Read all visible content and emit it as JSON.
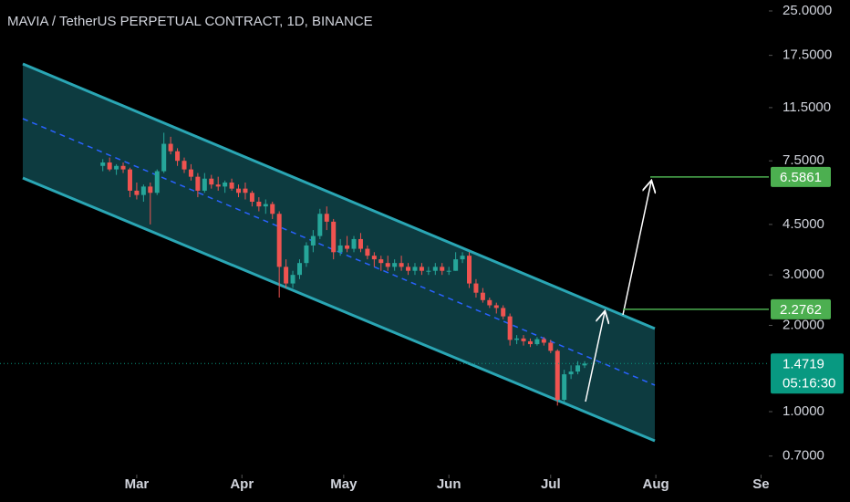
{
  "chart_data": {
    "type": "candlestick",
    "title": "MAVIA / TetherUS PERPETUAL CONTRACT, 1D, BINANCE",
    "log_scale": true,
    "xlim": [
      -11.3,
      215.3
    ],
    "xticks": [
      {
        "value": 29,
        "label": "Mar"
      },
      {
        "value": 60,
        "label": "Apr"
      },
      {
        "value": 90,
        "label": "May"
      },
      {
        "value": 121,
        "label": "Jun"
      },
      {
        "value": 151,
        "label": "Jul"
      },
      {
        "value": 182,
        "label": "Aug"
      },
      {
        "value": 213,
        "label": "Se"
      }
    ],
    "ylim": [
      0.603,
      27.3
    ],
    "yticks": [
      {
        "value": 25,
        "label": "25.0000"
      },
      {
        "value": 17.5,
        "label": "17.5000"
      },
      {
        "value": 11.5,
        "label": "11.5000"
      },
      {
        "value": 7.5,
        "label": "7.5000"
      },
      {
        "value": 4.5,
        "label": "4.5000"
      },
      {
        "value": 3,
        "label": "3.0000"
      },
      {
        "value": 2,
        "label": "2.0000"
      },
      {
        "value": 1,
        "label": "1.0000"
      },
      {
        "value": 0.7,
        "label": "0.7000"
      }
    ],
    "up_color": "#26a69a",
    "down_color": "#ef5350",
    "x": [
      19,
      21,
      23,
      25,
      27,
      29,
      31,
      33,
      35,
      37,
      39,
      41,
      43,
      45,
      47,
      49,
      51,
      53,
      55,
      57,
      59,
      61,
      63,
      65,
      67,
      69,
      71,
      73,
      75,
      77,
      79,
      81,
      83,
      85,
      87,
      89,
      91,
      93,
      95,
      97,
      99,
      101,
      103,
      105,
      107,
      109,
      111,
      113,
      115,
      117,
      119,
      121,
      123,
      125,
      127,
      129,
      131,
      133,
      135,
      137,
      139,
      141,
      143,
      145,
      147,
      149,
      151,
      153,
      155,
      157,
      159,
      161
    ],
    "open": [
      7.2,
      7.4,
      7.0,
      7.2,
      7.0,
      5.9,
      5.7,
      6.1,
      5.8,
      6.9,
      8.6,
      8.1,
      7.5,
      7.0,
      6.6,
      5.9,
      6.5,
      6.2,
      6.1,
      6.3,
      6.0,
      6.0,
      5.8,
      5.4,
      5.2,
      5.3,
      4.9,
      3.2,
      2.8,
      3.0,
      3.3,
      3.8,
      4.1,
      4.9,
      4.6,
      3.6,
      3.8,
      3.7,
      4.0,
      3.7,
      3.5,
      3.4,
      3.3,
      3.2,
      3.3,
      3.2,
      3.1,
      3.2,
      3.1,
      3.1,
      3.2,
      3.1,
      3.1,
      3.4,
      3.5,
      2.8,
      2.6,
      2.45,
      2.35,
      2.3,
      2.15,
      1.78,
      1.8,
      1.76,
      1.72,
      1.79,
      1.74,
      1.63,
      1.1,
      1.35,
      1.38,
      1.45
    ],
    "high": [
      7.6,
      7.7,
      7.3,
      7.4,
      7.1,
      6.3,
      6.2,
      6.3,
      7.0,
      9.4,
      9.1,
      8.3,
      7.7,
      7.3,
      6.8,
      6.8,
      6.7,
      6.6,
      6.4,
      6.5,
      6.2,
      6.3,
      5.9,
      5.6,
      5.5,
      5.4,
      5.0,
      3.4,
      3.1,
      3.4,
      3.9,
      4.3,
      5.1,
      5.2,
      4.7,
      4.0,
      4.1,
      4.1,
      4.2,
      3.8,
      3.6,
      3.5,
      3.5,
      3.4,
      3.5,
      3.3,
      3.3,
      3.3,
      3.2,
      3.3,
      3.3,
      3.2,
      3.6,
      3.6,
      3.6,
      2.9,
      2.7,
      2.5,
      2.4,
      2.35,
      2.2,
      1.85,
      1.85,
      1.8,
      1.82,
      1.82,
      1.78,
      1.65,
      1.4,
      1.45,
      1.5,
      1.5
    ],
    "low": [
      6.9,
      6.9,
      6.7,
      6.8,
      5.6,
      5.5,
      5.4,
      4.5,
      5.7,
      6.8,
      7.9,
      7.2,
      6.8,
      6.4,
      5.6,
      5.8,
      6.0,
      5.9,
      5.8,
      5.9,
      5.6,
      5.5,
      5.2,
      5.0,
      4.9,
      4.7,
      2.5,
      2.7,
      2.7,
      2.9,
      3.2,
      3.6,
      4.0,
      4.3,
      3.4,
      3.5,
      3.6,
      3.6,
      3.6,
      3.4,
      3.2,
      3.1,
      3.1,
      3.1,
      3.1,
      3.0,
      3.0,
      3.0,
      3.0,
      3.0,
      3.0,
      3.0,
      3.1,
      3.3,
      2.7,
      2.5,
      2.4,
      2.3,
      2.2,
      2.1,
      1.7,
      1.72,
      1.7,
      1.68,
      1.7,
      1.7,
      1.6,
      1.05,
      1.08,
      1.3,
      1.35,
      1.42
    ],
    "close": [
      7.4,
      7.0,
      7.2,
      7.0,
      5.9,
      5.7,
      6.1,
      5.8,
      6.9,
      8.6,
      8.1,
      7.5,
      7.0,
      6.6,
      5.9,
      6.5,
      6.2,
      6.1,
      6.3,
      6.0,
      5.8,
      5.8,
      5.4,
      5.2,
      5.3,
      4.9,
      3.2,
      2.8,
      3.0,
      3.3,
      3.8,
      4.1,
      4.9,
      4.6,
      3.6,
      3.8,
      3.7,
      4.0,
      3.7,
      3.5,
      3.4,
      3.3,
      3.2,
      3.3,
      3.2,
      3.1,
      3.2,
      3.1,
      3.1,
      3.2,
      3.1,
      3.1,
      3.4,
      3.5,
      2.8,
      2.6,
      2.45,
      2.35,
      2.3,
      2.15,
      1.78,
      1.8,
      1.76,
      1.72,
      1.79,
      1.74,
      1.63,
      1.1,
      1.35,
      1.38,
      1.45,
      1.4719
    ],
    "price_labels": [
      6.5861,
      2.2762
    ],
    "last_price": 1.4719,
    "countdown": "05:16:30"
  }
}
